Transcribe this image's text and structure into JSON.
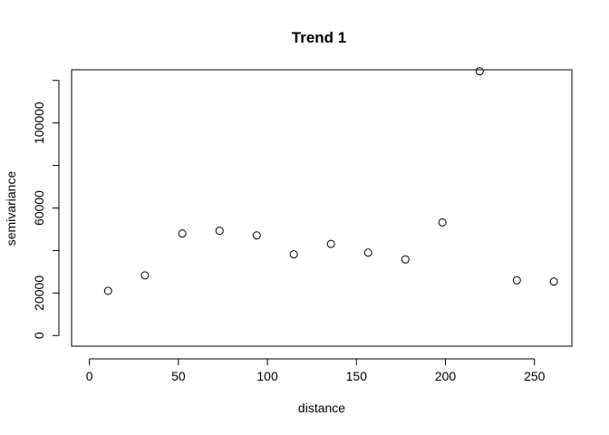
{
  "chart_data": {
    "type": "scatter",
    "title": "Trend 1",
    "xlabel": "distance",
    "ylabel": "semivariance",
    "xlim": [
      -10,
      271
    ],
    "ylim": [
      -5000,
      125000
    ],
    "xticks": [
      0,
      50,
      100,
      150,
      200,
      250
    ],
    "yticks": [
      0,
      20000,
      60000,
      100000
    ],
    "ytick_labels": [
      "0",
      "20000",
      "60000",
      "100000"
    ],
    "ytick_minor": [
      40000,
      80000,
      120000
    ],
    "grid": false,
    "marker": "open-circle",
    "series": [
      {
        "x": [
          10.5,
          31.2,
          52.2,
          73.1,
          94.0,
          114.8,
          135.7,
          156.6,
          177.5,
          198.3,
          219.2,
          240.1,
          260.9
        ],
        "y": [
          21000,
          28300,
          48000,
          49300,
          47100,
          38200,
          43100,
          39000,
          35800,
          53200,
          124300,
          26000,
          25400
        ]
      }
    ]
  }
}
